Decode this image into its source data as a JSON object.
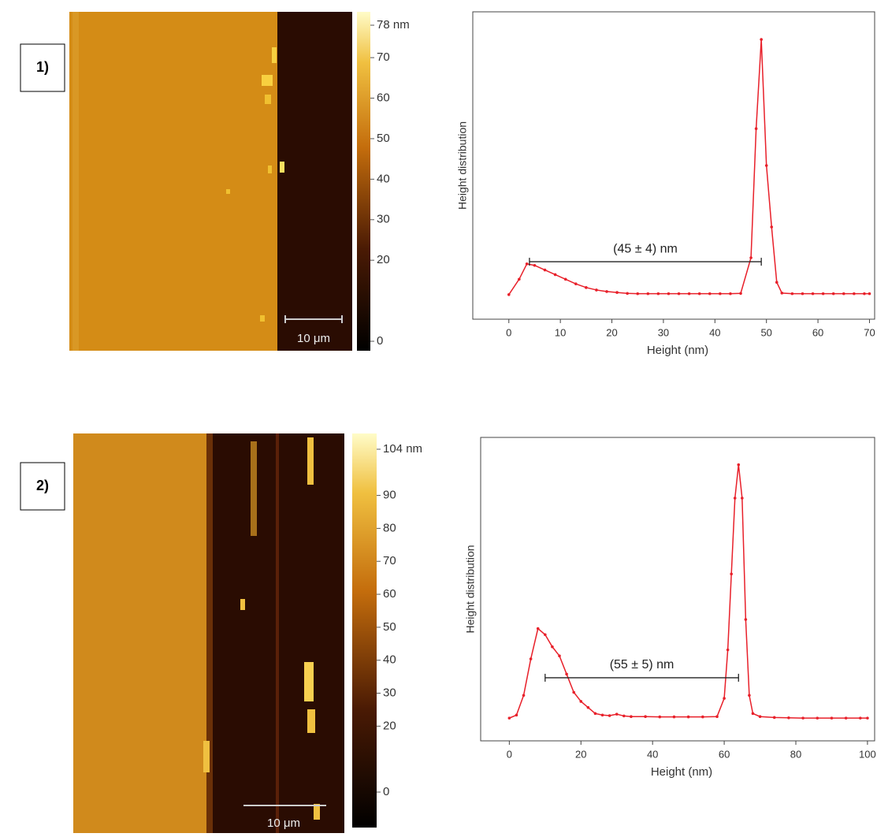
{
  "panels": [
    {
      "label": "1)",
      "colorbar": {
        "lim": [
          0,
          78
        ],
        "ticks": [
          {
            "value": 78,
            "label": "78 nm"
          },
          70,
          60,
          50,
          40,
          30,
          20,
          0
        ]
      },
      "scale_bar": "10 μm"
    },
    {
      "label": "2)",
      "colorbar": {
        "lim": [
          0,
          104
        ],
        "ticks": [
          {
            "value": 104,
            "label": "104 nm"
          },
          90,
          80,
          70,
          60,
          50,
          40,
          30,
          20,
          0
        ]
      },
      "scale_bar": "10 μm"
    }
  ],
  "chart_data": [
    {
      "type": "line",
      "xlabel": "Height (nm)",
      "ylabel": "Height distribution",
      "color": "#e8202a",
      "x": [
        0,
        2,
        3.5,
        5,
        7,
        9,
        11,
        13,
        15,
        17,
        19,
        21,
        23,
        25,
        27,
        29,
        31,
        33,
        35,
        37,
        39,
        41,
        43,
        45,
        47,
        48,
        49,
        50,
        51,
        52,
        53,
        55,
        57,
        59,
        61,
        63,
        65,
        67,
        69,
        70
      ],
      "values": [
        8,
        13,
        18,
        17.5,
        16,
        14.5,
        13,
        11.5,
        10.3,
        9.5,
        9,
        8.7,
        8.4,
        8.3,
        8.3,
        8.3,
        8.3,
        8.3,
        8.3,
        8.3,
        8.3,
        8.3,
        8.3,
        8.4,
        20,
        62,
        91,
        50,
        30,
        12,
        8.5,
        8.3,
        8.3,
        8.3,
        8.3,
        8.3,
        8.3,
        8.3,
        8.3,
        8.3
      ],
      "xlim": [
        -7,
        71
      ],
      "ylim": [
        0,
        100
      ],
      "xticks": [
        0,
        10,
        20,
        30,
        40,
        50,
        60,
        70
      ],
      "annotation": {
        "text": "(45 ± 4) nm",
        "x": [
          4,
          49
        ],
        "y": 18.7
      }
    },
    {
      "type": "line",
      "xlabel": "Height (nm)",
      "ylabel": "Height distribution",
      "color": "#e8202a",
      "x": [
        0,
        2,
        4,
        6,
        8,
        10,
        12,
        14,
        16,
        18,
        20,
        22,
        24,
        26,
        28,
        30,
        32,
        34,
        38,
        42,
        46,
        50,
        54,
        58,
        60,
        61,
        62,
        63,
        64,
        65,
        66,
        67,
        68,
        70,
        74,
        78,
        82,
        86,
        90,
        94,
        98,
        100
      ],
      "values": [
        7.5,
        8.5,
        15,
        27,
        37,
        35,
        31,
        28,
        22,
        16,
        13,
        11,
        9,
        8.5,
        8.3,
        8.8,
        8.2,
        8,
        8,
        7.9,
        7.9,
        7.9,
        7.9,
        8,
        14,
        30,
        55,
        80,
        91,
        80,
        40,
        15,
        9,
        8,
        7.7,
        7.6,
        7.5,
        7.5,
        7.5,
        7.5,
        7.5,
        7.5
      ],
      "xlim": [
        -8,
        102
      ],
      "ylim": [
        0,
        100
      ],
      "xticks": [
        0,
        20,
        40,
        60,
        80,
        100
      ],
      "annotation": {
        "text": "(55 ± 5) nm",
        "x": [
          10,
          64
        ],
        "y": 20.8
      }
    }
  ]
}
